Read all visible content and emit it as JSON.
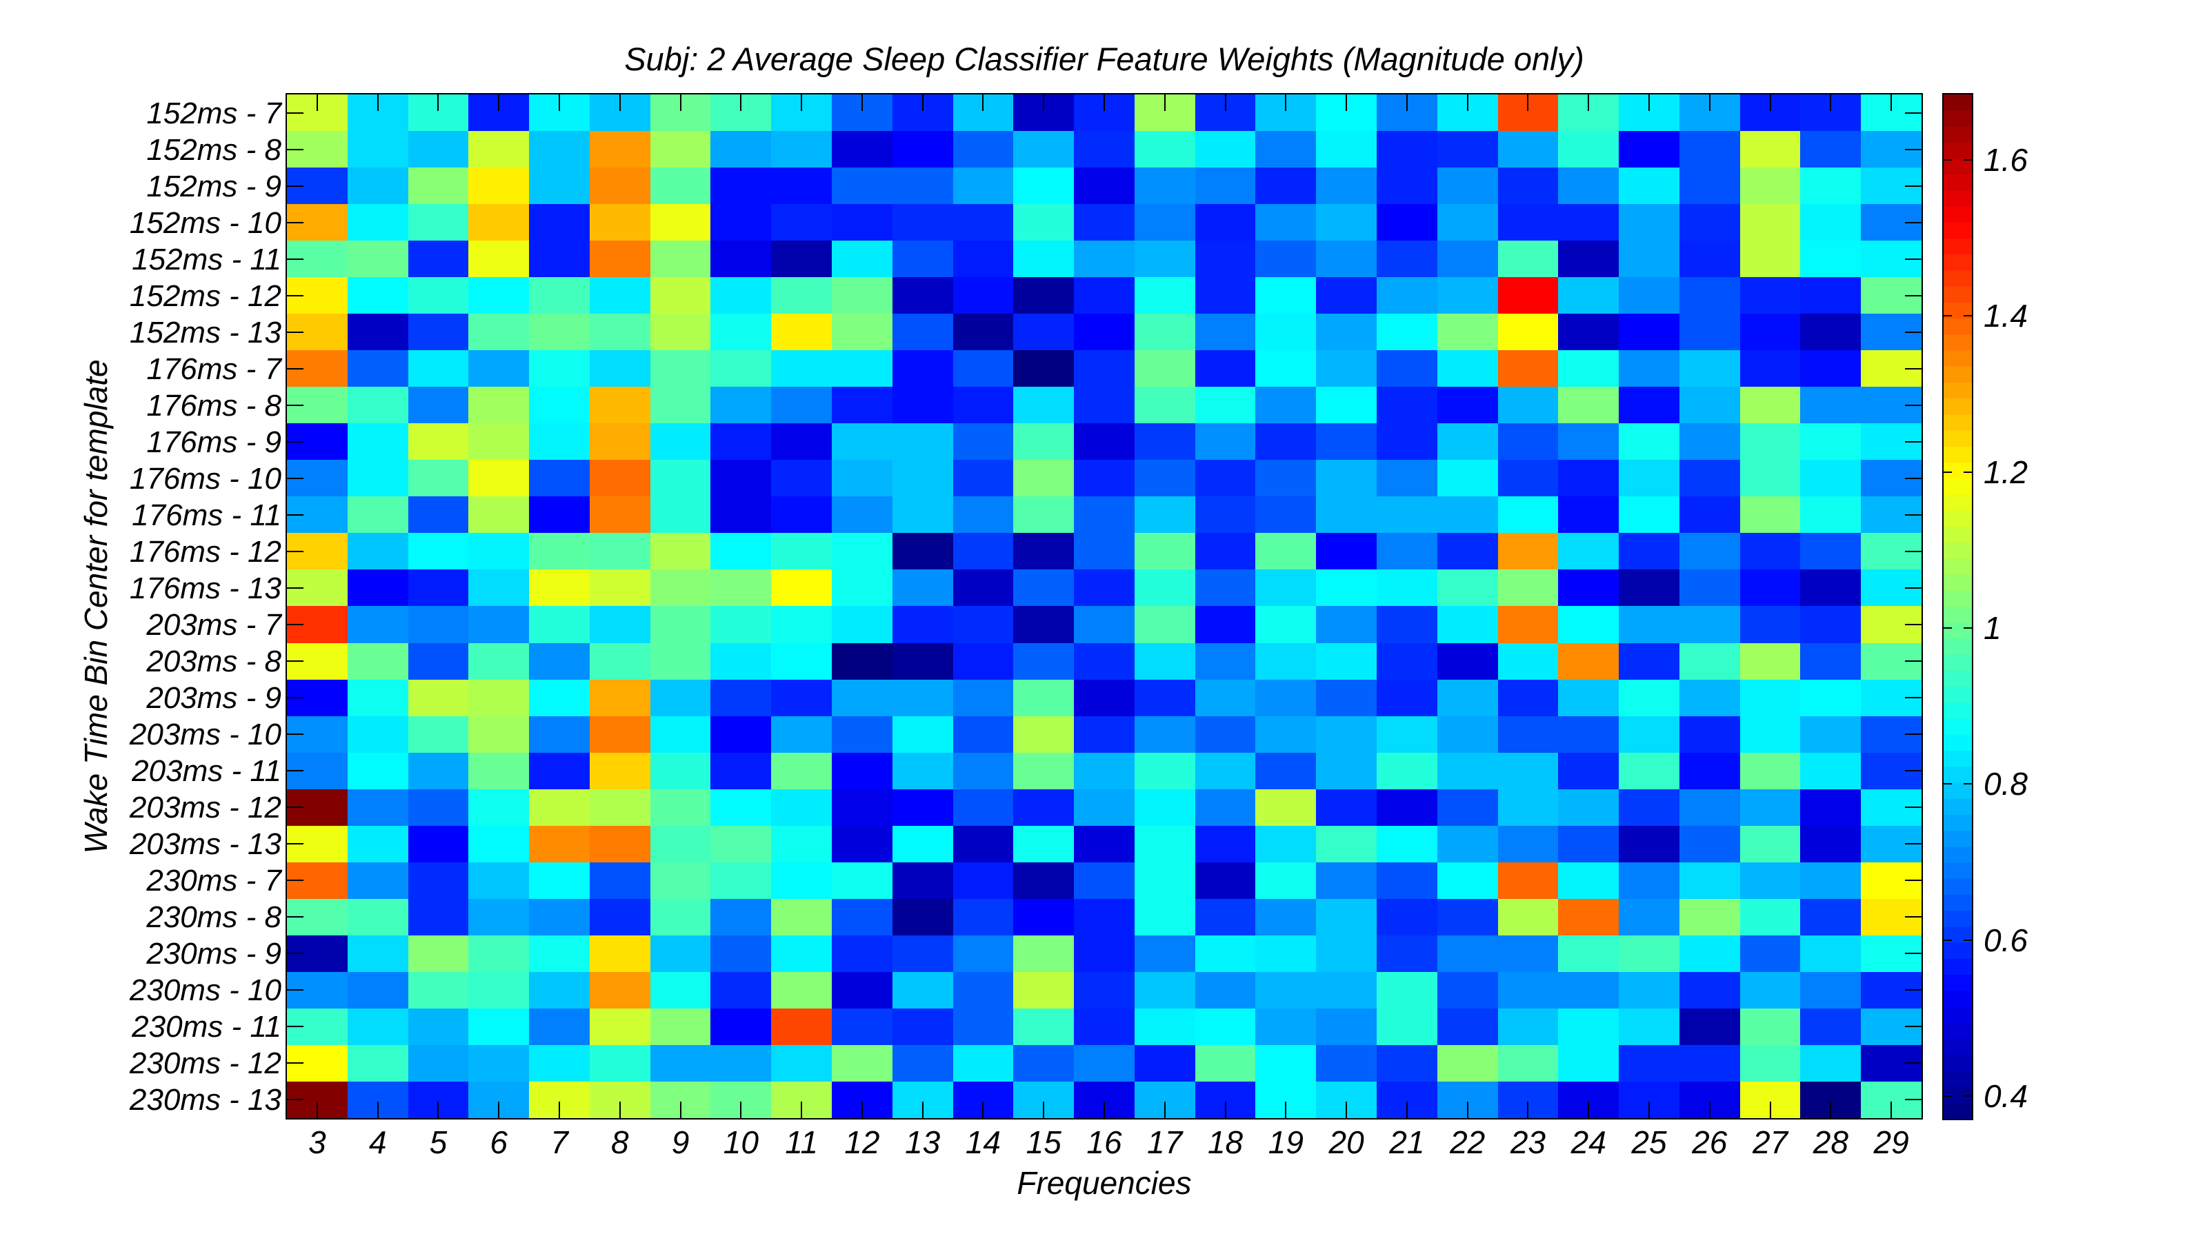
{
  "chart_data": {
    "type": "heatmap",
    "title": "Subj: 2 Average Sleep Classifier Feature Weights (Magnitude only)",
    "xlabel": "Frequencies",
    "ylabel": "Wake Time Bin Center for template",
    "colormap": "jet",
    "colorbar": {
      "range": [
        0.371,
        1.684
      ],
      "ticks": [
        0.4,
        0.6,
        0.8,
        1,
        1.2,
        1.4,
        1.6
      ],
      "tick_labels": [
        "0.4",
        "0.6",
        "0.8",
        "1",
        "1.2",
        "1.4",
        "1.6"
      ]
    },
    "x": [
      3,
      4,
      5,
      6,
      7,
      8,
      9,
      10,
      11,
      12,
      13,
      14,
      15,
      16,
      17,
      18,
      19,
      20,
      21,
      22,
      23,
      24,
      25,
      26,
      27,
      28,
      29
    ],
    "y": [
      "152ms - 7",
      "152ms - 8",
      "152ms - 9",
      "152ms - 10",
      "152ms - 11",
      "152ms - 12",
      "152ms - 13",
      "176ms - 7",
      "176ms - 8",
      "176ms - 9",
      "176ms - 10",
      "176ms - 11",
      "176ms - 12",
      "176ms - 13",
      "203ms - 7",
      "203ms - 8",
      "203ms - 9",
      "203ms - 10",
      "203ms - 11",
      "203ms - 12",
      "203ms - 13",
      "230ms - 7",
      "230ms - 8",
      "230ms - 9",
      "230ms - 10",
      "230ms - 11",
      "230ms - 12",
      "230ms - 13"
    ],
    "values": [
      [
        1.13,
        0.82,
        0.91,
        0.57,
        0.85,
        0.79,
        1.0,
        0.95,
        0.82,
        0.66,
        0.58,
        0.79,
        0.46,
        0.58,
        1.07,
        0.59,
        0.79,
        0.86,
        0.7,
        0.84,
        1.43,
        0.93,
        0.84,
        0.75,
        0.57,
        0.58,
        0.88
      ],
      [
        1.07,
        0.82,
        0.79,
        1.13,
        0.79,
        1.32,
        1.07,
        0.75,
        0.77,
        0.49,
        0.535,
        0.66,
        0.77,
        0.59,
        0.91,
        0.84,
        0.7,
        0.85,
        0.58,
        0.59,
        0.75,
        0.91,
        0.535,
        0.64,
        1.13,
        0.64,
        0.75
      ],
      [
        0.61,
        0.79,
        1.04,
        1.21,
        0.79,
        1.34,
        0.98,
        0.55,
        0.55,
        0.66,
        0.66,
        0.75,
        0.86,
        0.51,
        0.72,
        0.7,
        0.58,
        0.72,
        0.58,
        0.72,
        0.59,
        0.72,
        0.84,
        0.64,
        1.07,
        0.88,
        0.82
      ],
      [
        1.3,
        0.85,
        0.93,
        1.26,
        0.57,
        1.28,
        1.17,
        0.55,
        0.58,
        0.57,
        0.59,
        0.59,
        0.91,
        0.59,
        0.7,
        0.57,
        0.72,
        0.77,
        0.535,
        0.75,
        0.58,
        0.58,
        0.75,
        0.59,
        1.11,
        0.85,
        0.7
      ],
      [
        0.98,
        1.0,
        0.59,
        1.17,
        0.57,
        1.36,
        1.04,
        0.51,
        0.43,
        0.84,
        0.64,
        0.57,
        0.85,
        0.75,
        0.77,
        0.58,
        0.66,
        0.72,
        0.61,
        0.7,
        0.95,
        0.45,
        0.75,
        0.58,
        1.11,
        0.86,
        0.85
      ],
      [
        1.21,
        0.86,
        0.91,
        0.86,
        0.95,
        0.84,
        1.11,
        0.84,
        0.95,
        1.0,
        0.46,
        0.55,
        0.41,
        0.57,
        0.88,
        0.58,
        0.86,
        0.58,
        0.75,
        0.77,
        1.52,
        0.79,
        0.72,
        0.64,
        0.58,
        0.57,
        1.0
      ],
      [
        1.26,
        0.46,
        0.61,
        0.97,
        1.0,
        0.97,
        1.09,
        0.88,
        1.21,
        1.03,
        0.64,
        0.41,
        0.58,
        0.535,
        0.95,
        0.7,
        0.85,
        0.75,
        0.86,
        1.03,
        1.19,
        0.46,
        0.535,
        0.64,
        0.55,
        0.45,
        0.7
      ],
      [
        1.36,
        0.66,
        0.84,
        0.75,
        0.88,
        0.82,
        0.97,
        0.93,
        0.84,
        0.84,
        0.55,
        0.64,
        0.37,
        0.59,
        1.0,
        0.57,
        0.86,
        0.77,
        0.64,
        0.84,
        1.39,
        0.88,
        0.72,
        0.79,
        0.57,
        0.55,
        1.15
      ],
      [
        1.0,
        0.93,
        0.7,
        1.07,
        0.86,
        1.28,
        0.97,
        0.75,
        0.7,
        0.57,
        0.55,
        0.57,
        0.82,
        0.59,
        0.95,
        0.88,
        0.72,
        0.86,
        0.58,
        0.55,
        0.77,
        1.03,
        0.55,
        0.77,
        1.07,
        0.72,
        0.72
      ],
      [
        0.535,
        0.85,
        1.13,
        1.09,
        0.85,
        1.3,
        0.84,
        0.57,
        0.51,
        0.79,
        0.79,
        0.66,
        0.95,
        0.49,
        0.61,
        0.72,
        0.59,
        0.64,
        0.58,
        0.79,
        0.64,
        0.7,
        0.88,
        0.72,
        0.93,
        0.88,
        0.84
      ],
      [
        0.7,
        0.85,
        0.97,
        1.17,
        0.64,
        1.38,
        0.91,
        0.51,
        0.58,
        0.77,
        0.79,
        0.61,
        1.03,
        0.58,
        0.66,
        0.59,
        0.66,
        0.77,
        0.7,
        0.85,
        0.61,
        0.57,
        0.82,
        0.61,
        0.93,
        0.84,
        0.7
      ],
      [
        0.75,
        0.97,
        0.64,
        1.09,
        0.535,
        1.36,
        0.91,
        0.51,
        0.55,
        0.72,
        0.79,
        0.7,
        0.97,
        0.66,
        0.79,
        0.61,
        0.64,
        0.77,
        0.77,
        0.77,
        0.86,
        0.55,
        0.86,
        0.58,
        1.03,
        0.88,
        0.77
      ],
      [
        1.25,
        0.79,
        0.86,
        0.85,
        0.98,
        0.97,
        1.09,
        0.86,
        0.91,
        0.88,
        0.39,
        0.61,
        0.43,
        0.66,
        0.98,
        0.58,
        0.98,
        0.535,
        0.7,
        0.59,
        1.32,
        0.82,
        0.59,
        0.7,
        0.59,
        0.64,
        0.95
      ],
      [
        1.11,
        0.535,
        0.57,
        0.82,
        1.17,
        1.13,
        1.04,
        1.03,
        1.19,
        0.88,
        0.72,
        0.46,
        0.66,
        0.58,
        0.91,
        0.66,
        0.82,
        0.86,
        0.85,
        0.93,
        1.03,
        0.535,
        0.43,
        0.66,
        0.55,
        0.46,
        0.84
      ],
      [
        1.46,
        0.72,
        0.7,
        0.72,
        0.91,
        0.82,
        0.98,
        0.91,
        0.88,
        0.84,
        0.58,
        0.59,
        0.43,
        0.7,
        0.97,
        0.55,
        0.88,
        0.72,
        0.61,
        0.84,
        1.36,
        0.86,
        0.75,
        0.75,
        0.61,
        0.59,
        1.13
      ],
      [
        1.17,
        1.0,
        0.64,
        0.95,
        0.72,
        0.95,
        0.98,
        0.84,
        0.86,
        0.37,
        0.4,
        0.57,
        0.66,
        0.59,
        0.82,
        0.7,
        0.82,
        0.84,
        0.59,
        0.49,
        0.84,
        1.34,
        0.59,
        0.93,
        1.07,
        0.64,
        0.98
      ],
      [
        0.535,
        0.88,
        1.11,
        1.09,
        0.86,
        1.3,
        0.79,
        0.61,
        0.58,
        0.75,
        0.75,
        0.7,
        0.98,
        0.49,
        0.59,
        0.75,
        0.72,
        0.66,
        0.58,
        0.77,
        0.59,
        0.79,
        0.88,
        0.77,
        0.85,
        0.86,
        0.84
      ],
      [
        0.72,
        0.84,
        0.95,
        1.07,
        0.7,
        1.36,
        0.85,
        0.535,
        0.75,
        0.66,
        0.85,
        0.64,
        1.09,
        0.59,
        0.72,
        0.66,
        0.75,
        0.77,
        0.82,
        0.75,
        0.64,
        0.64,
        0.82,
        0.58,
        0.85,
        0.77,
        0.64
      ],
      [
        0.7,
        0.86,
        0.75,
        1.0,
        0.57,
        1.25,
        0.91,
        0.57,
        1.0,
        0.535,
        0.79,
        0.7,
        1.0,
        0.77,
        0.91,
        0.79,
        0.64,
        0.77,
        0.91,
        0.79,
        0.79,
        0.59,
        0.93,
        0.55,
        1.0,
        0.84,
        0.61
      ],
      [
        1.68,
        0.7,
        0.66,
        0.88,
        1.11,
        1.09,
        0.98,
        0.86,
        0.84,
        0.51,
        0.535,
        0.64,
        0.58,
        0.75,
        0.85,
        0.7,
        1.11,
        0.58,
        0.51,
        0.64,
        0.79,
        0.77,
        0.61,
        0.7,
        0.75,
        0.51,
        0.84
      ],
      [
        1.17,
        0.84,
        0.535,
        0.86,
        1.34,
        1.36,
        0.95,
        0.97,
        0.88,
        0.49,
        0.86,
        0.46,
        0.88,
        0.49,
        0.88,
        0.57,
        0.82,
        0.93,
        0.86,
        0.75,
        0.7,
        0.64,
        0.45,
        0.66,
        0.95,
        0.49,
        0.77
      ],
      [
        1.39,
        0.72,
        0.59,
        0.79,
        0.86,
        0.64,
        0.97,
        0.93,
        0.86,
        0.88,
        0.45,
        0.57,
        0.43,
        0.64,
        0.88,
        0.46,
        0.88,
        0.7,
        0.64,
        0.86,
        1.39,
        0.85,
        0.7,
        0.82,
        0.77,
        0.75,
        1.19
      ],
      [
        0.97,
        0.95,
        0.59,
        0.75,
        0.72,
        0.59,
        0.95,
        0.7,
        1.04,
        0.64,
        0.4,
        0.61,
        0.535,
        0.57,
        0.88,
        0.61,
        0.72,
        0.79,
        0.59,
        0.61,
        1.09,
        1.38,
        0.72,
        1.04,
        0.91,
        0.61,
        1.22
      ],
      [
        0.43,
        0.82,
        1.04,
        0.95,
        0.88,
        1.23,
        0.79,
        0.66,
        0.85,
        0.59,
        0.61,
        0.7,
        1.03,
        0.57,
        0.7,
        0.85,
        0.84,
        0.79,
        0.61,
        0.7,
        0.7,
        0.93,
        0.95,
        0.84,
        0.66,
        0.82,
        0.88
      ],
      [
        0.72,
        0.7,
        0.95,
        0.93,
        0.79,
        1.32,
        0.88,
        0.59,
        1.04,
        0.49,
        0.79,
        0.66,
        1.11,
        0.59,
        0.79,
        0.72,
        0.77,
        0.77,
        0.91,
        0.64,
        0.72,
        0.72,
        0.77,
        0.59,
        0.77,
        0.7,
        0.59
      ],
      [
        0.93,
        0.82,
        0.77,
        0.86,
        0.7,
        1.13,
        1.04,
        0.535,
        1.43,
        0.61,
        0.59,
        0.66,
        0.93,
        0.58,
        0.85,
        0.86,
        0.75,
        0.72,
        0.91,
        0.61,
        0.79,
        0.85,
        0.82,
        0.43,
        0.98,
        0.61,
        0.77
      ],
      [
        1.19,
        0.93,
        0.75,
        0.77,
        0.84,
        0.91,
        0.75,
        0.75,
        0.82,
        1.03,
        0.66,
        0.84,
        0.66,
        0.7,
        0.57,
        0.98,
        0.86,
        0.66,
        0.61,
        1.04,
        0.97,
        0.85,
        0.59,
        0.59,
        0.95,
        0.82,
        0.46
      ],
      [
        1.68,
        0.64,
        0.57,
        0.75,
        1.15,
        1.11,
        1.03,
        1.0,
        1.09,
        0.535,
        0.82,
        0.55,
        0.79,
        0.51,
        0.77,
        0.57,
        0.86,
        0.82,
        0.58,
        0.72,
        0.61,
        0.51,
        0.57,
        0.51,
        1.17,
        0.37,
        0.95
      ]
    ],
    "grid": false,
    "legend": "colorbar-right"
  }
}
